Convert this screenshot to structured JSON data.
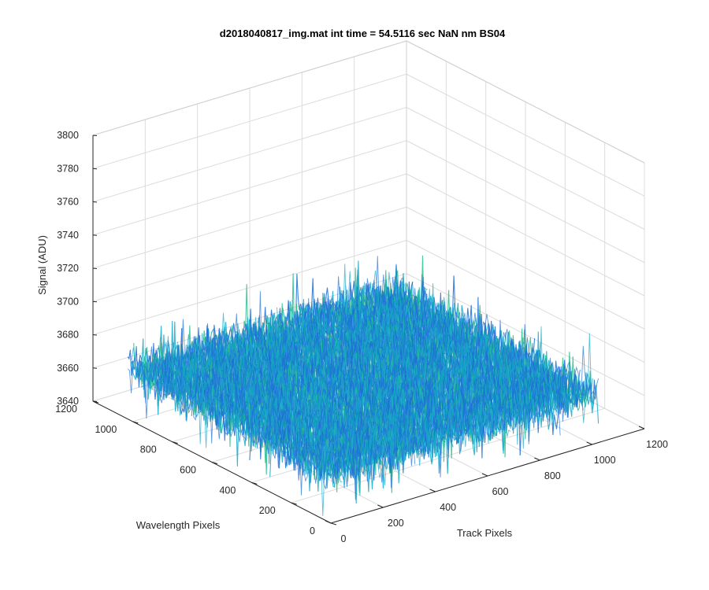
{
  "chart_data": {
    "type": "surface",
    "title": "d2018040817_img.mat int time = 54.5116 sec  NaN nm BS04",
    "zlabel": "Signal (ADU)",
    "xlabel": "Track Pixels",
    "ylabel": "Wavelength Pixels",
    "xlim": [
      0,
      1200
    ],
    "ylim": [
      0,
      1200
    ],
    "zlim": [
      3640,
      3800
    ],
    "x_ticks": [
      "0",
      "200",
      "400",
      "600",
      "800",
      "1000",
      "1200"
    ],
    "y_ticks": [
      "0",
      "200",
      "400",
      "600",
      "800",
      "1000",
      "1200"
    ],
    "z_ticks": [
      "3640",
      "3660",
      "3680",
      "3700",
      "3720",
      "3740",
      "3760",
      "3780",
      "3800"
    ],
    "x_extent": [
      0,
      1024
    ],
    "y_extent": [
      0,
      1024
    ],
    "z_mean": 3670,
    "z_noise_range": [
      3640,
      3745
    ],
    "grid": true,
    "colors": {
      "low": "#1f6fd6",
      "mid": "#17a8c8",
      "high": "#2bbf93"
    }
  }
}
